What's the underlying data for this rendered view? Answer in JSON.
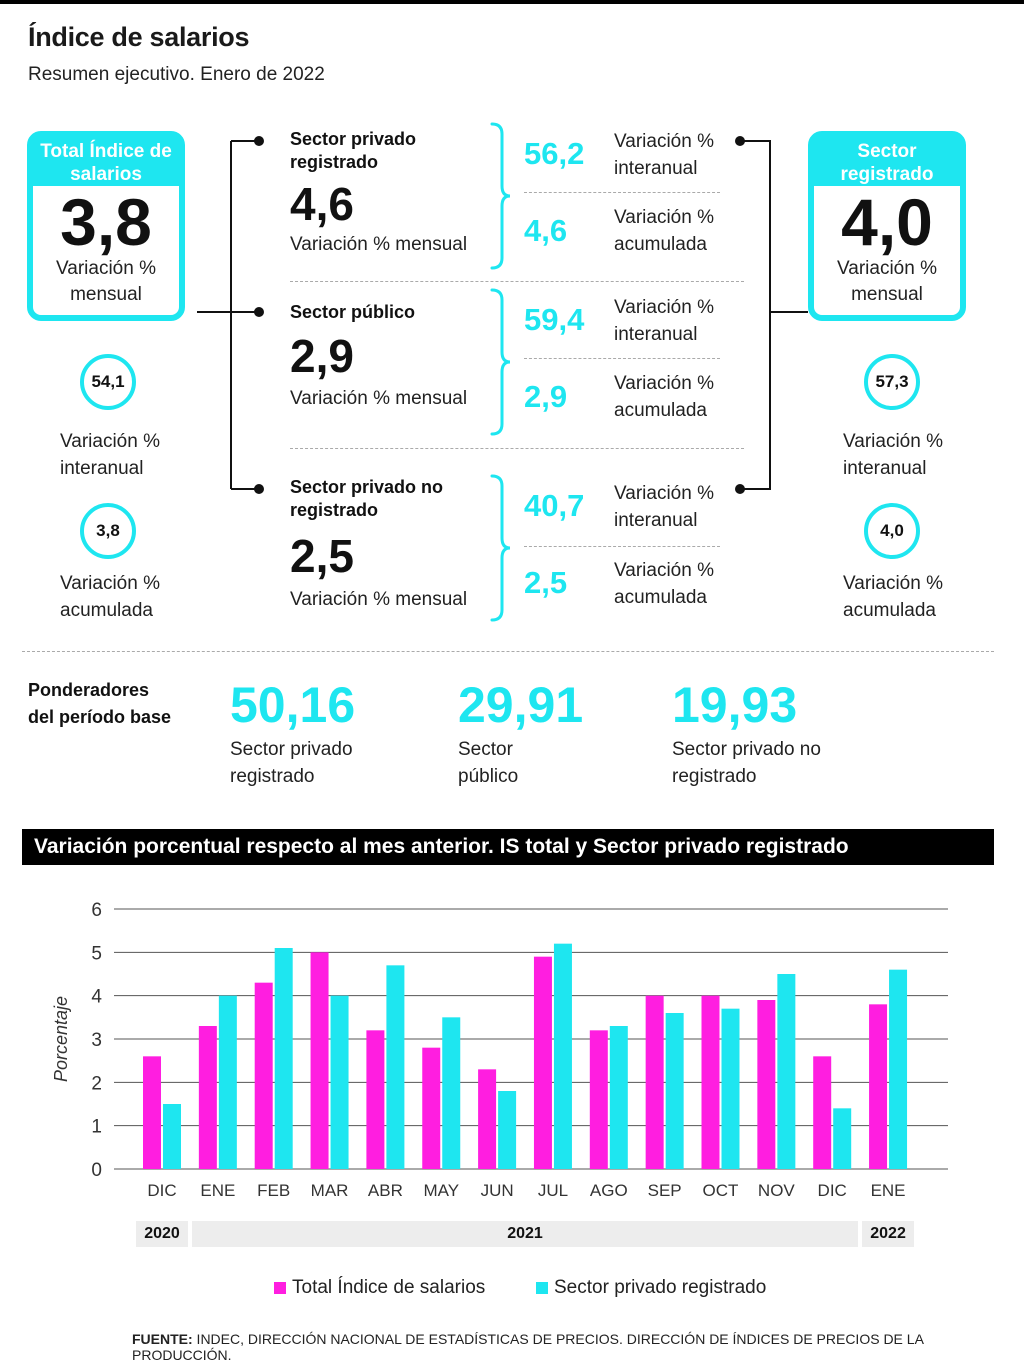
{
  "header": {
    "title": "Índice de salarios",
    "subtitle": "Resumen ejecutivo. Enero de 2022"
  },
  "total": {
    "head": "Total Índice de salarios",
    "value": "3,8",
    "label": "Variación % mensual",
    "interanual": "54,1",
    "interanual_label": "Variación % interanual",
    "acumulada": "3,8",
    "acumulada_label": "Variación % acumulada"
  },
  "registrado": {
    "head": "Sector registrado",
    "value": "4,0",
    "label": "Variación % mensual",
    "interanual": "57,3",
    "interanual_label": "Variación % interanual",
    "acumulada": "4,0",
    "acumulada_label": "Variación % acumulada"
  },
  "sectors": [
    {
      "name": "Sector privado registrado",
      "value": "4,6",
      "label": "Variación % mensual",
      "interanual": "56,2",
      "interanual_label": "Variación % interanual",
      "acumulada": "4,6",
      "acumulada_label": "Variación % acumulada"
    },
    {
      "name": "Sector público",
      "value": "2,9",
      "label": "Variación % mensual",
      "interanual": "59,4",
      "interanual_label": "Variación % interanual",
      "acumulada": "2,9",
      "acumulada_label": "Variación % acumulada"
    },
    {
      "name": "Sector privado no registrado",
      "value": "2,5",
      "label": "Variación % mensual",
      "interanual": "40,7",
      "interanual_label": "Variación % interanual",
      "acumulada": "2,5",
      "acumulada_label": "Variación % acumulada"
    }
  ],
  "ponderadores": {
    "title": "Ponderadores del período base",
    "items": [
      {
        "value": "50,16",
        "label": "Sector privado registrado"
      },
      {
        "value": "29,91",
        "label": "Sector público"
      },
      {
        "value": "19,93",
        "label": "Sector privado no registrado"
      }
    ]
  },
  "chart_data": {
    "type": "bar",
    "title": "Variación porcentual respecto al mes anterior. IS total y Sector privado registrado",
    "ylabel": "Porcentaje",
    "xlabel": "",
    "ylim": [
      0,
      6
    ],
    "yticks": [
      0,
      1,
      2,
      3,
      4,
      5,
      6
    ],
    "grid": true,
    "legend_position": "bottom",
    "categories": [
      "DIC",
      "ENE",
      "FEB",
      "MAR",
      "ABR",
      "MAY",
      "JUN",
      "JUL",
      "AGO",
      "SEP",
      "OCT",
      "NOV",
      "DIC",
      "ENE"
    ],
    "year_groups": [
      {
        "label": "2020",
        "count": 1
      },
      {
        "label": "2021",
        "count": 12
      },
      {
        "label": "2022",
        "count": 1
      }
    ],
    "series": [
      {
        "name": "Total Índice de salarios",
        "color": "#ff1ee0",
        "values": [
          2.6,
          3.3,
          4.3,
          5.0,
          3.2,
          2.8,
          2.3,
          4.9,
          3.2,
          4.0,
          4.0,
          3.9,
          2.6,
          3.8
        ]
      },
      {
        "name": "Sector privado registrado",
        "color": "#1ee6f0",
        "values": [
          1.5,
          4.0,
          5.1,
          4.0,
          4.7,
          3.5,
          1.8,
          5.2,
          3.3,
          3.6,
          3.7,
          4.5,
          1.4,
          4.6
        ]
      }
    ]
  },
  "source": {
    "prefix": "FUENTE:",
    "text": " INDEC, DIRECCIÓN NACIONAL DE ESTADÍSTICAS DE PRECIOS. DIRECCIÓN DE ÍNDICES DE PRECIOS DE LA PRODUCCIÓN."
  },
  "colors": {
    "accent": "#1ee6f0",
    "magenta": "#ff1ee0"
  }
}
